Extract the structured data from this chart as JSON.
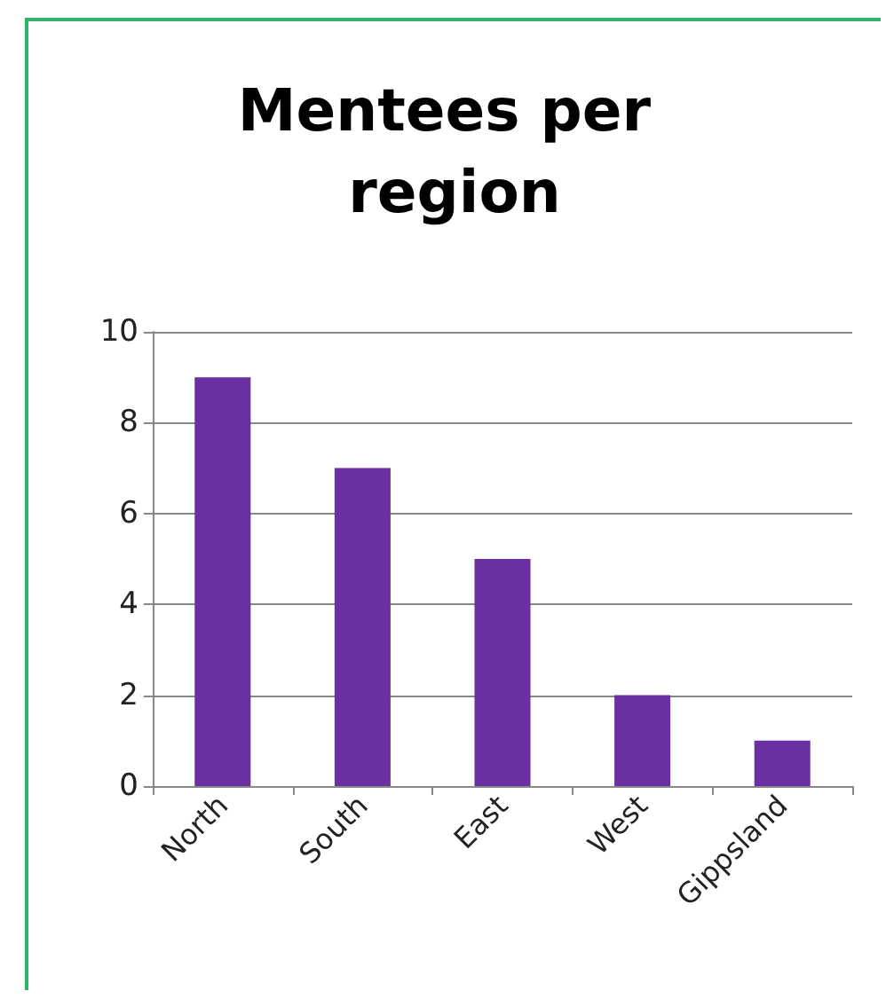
{
  "chart_data": {
    "type": "bar",
    "title": "Mentees per region",
    "categories": [
      "North",
      "South",
      "East",
      "West",
      "Gippsland"
    ],
    "values": [
      9,
      7,
      5,
      2,
      1
    ],
    "color": "#6a2fa0",
    "ylim": [
      0,
      10
    ],
    "yticks": [
      0,
      2,
      4,
      6,
      8,
      10
    ],
    "grid": "y"
  }
}
